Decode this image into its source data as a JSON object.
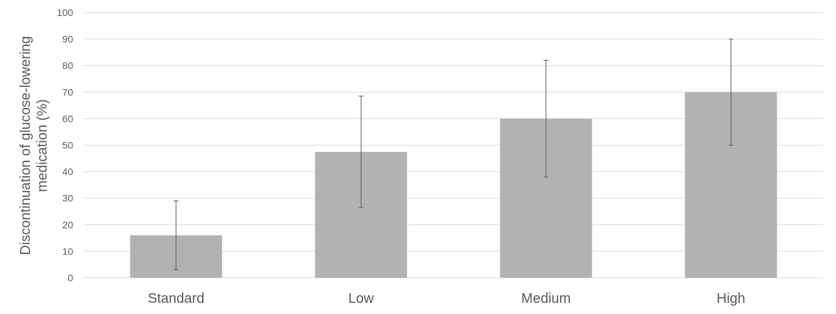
{
  "chart_data": {
    "type": "bar",
    "title": "",
    "xlabel": "",
    "ylabel": "Discontinuation of glucose-lowering medication (%)",
    "ylabel_lines": [
      "Discontinuation of glucose-lowering",
      "medication (%)"
    ],
    "categories": [
      "Standard",
      "Low",
      "Medium",
      "High"
    ],
    "values": [
      16,
      47.5,
      60,
      70
    ],
    "error_low": [
      3,
      26.5,
      38,
      50
    ],
    "error_high": [
      29,
      68.5,
      82,
      90
    ],
    "ylim": [
      0,
      100
    ],
    "yticks": [
      0,
      10,
      20,
      30,
      40,
      50,
      60,
      70,
      80,
      90,
      100
    ],
    "grid": true,
    "legend": "none",
    "colors": {
      "bar": "#b2b2b2",
      "grid": "#d9d9d9",
      "error": "#595959",
      "text": "#595959"
    }
  }
}
